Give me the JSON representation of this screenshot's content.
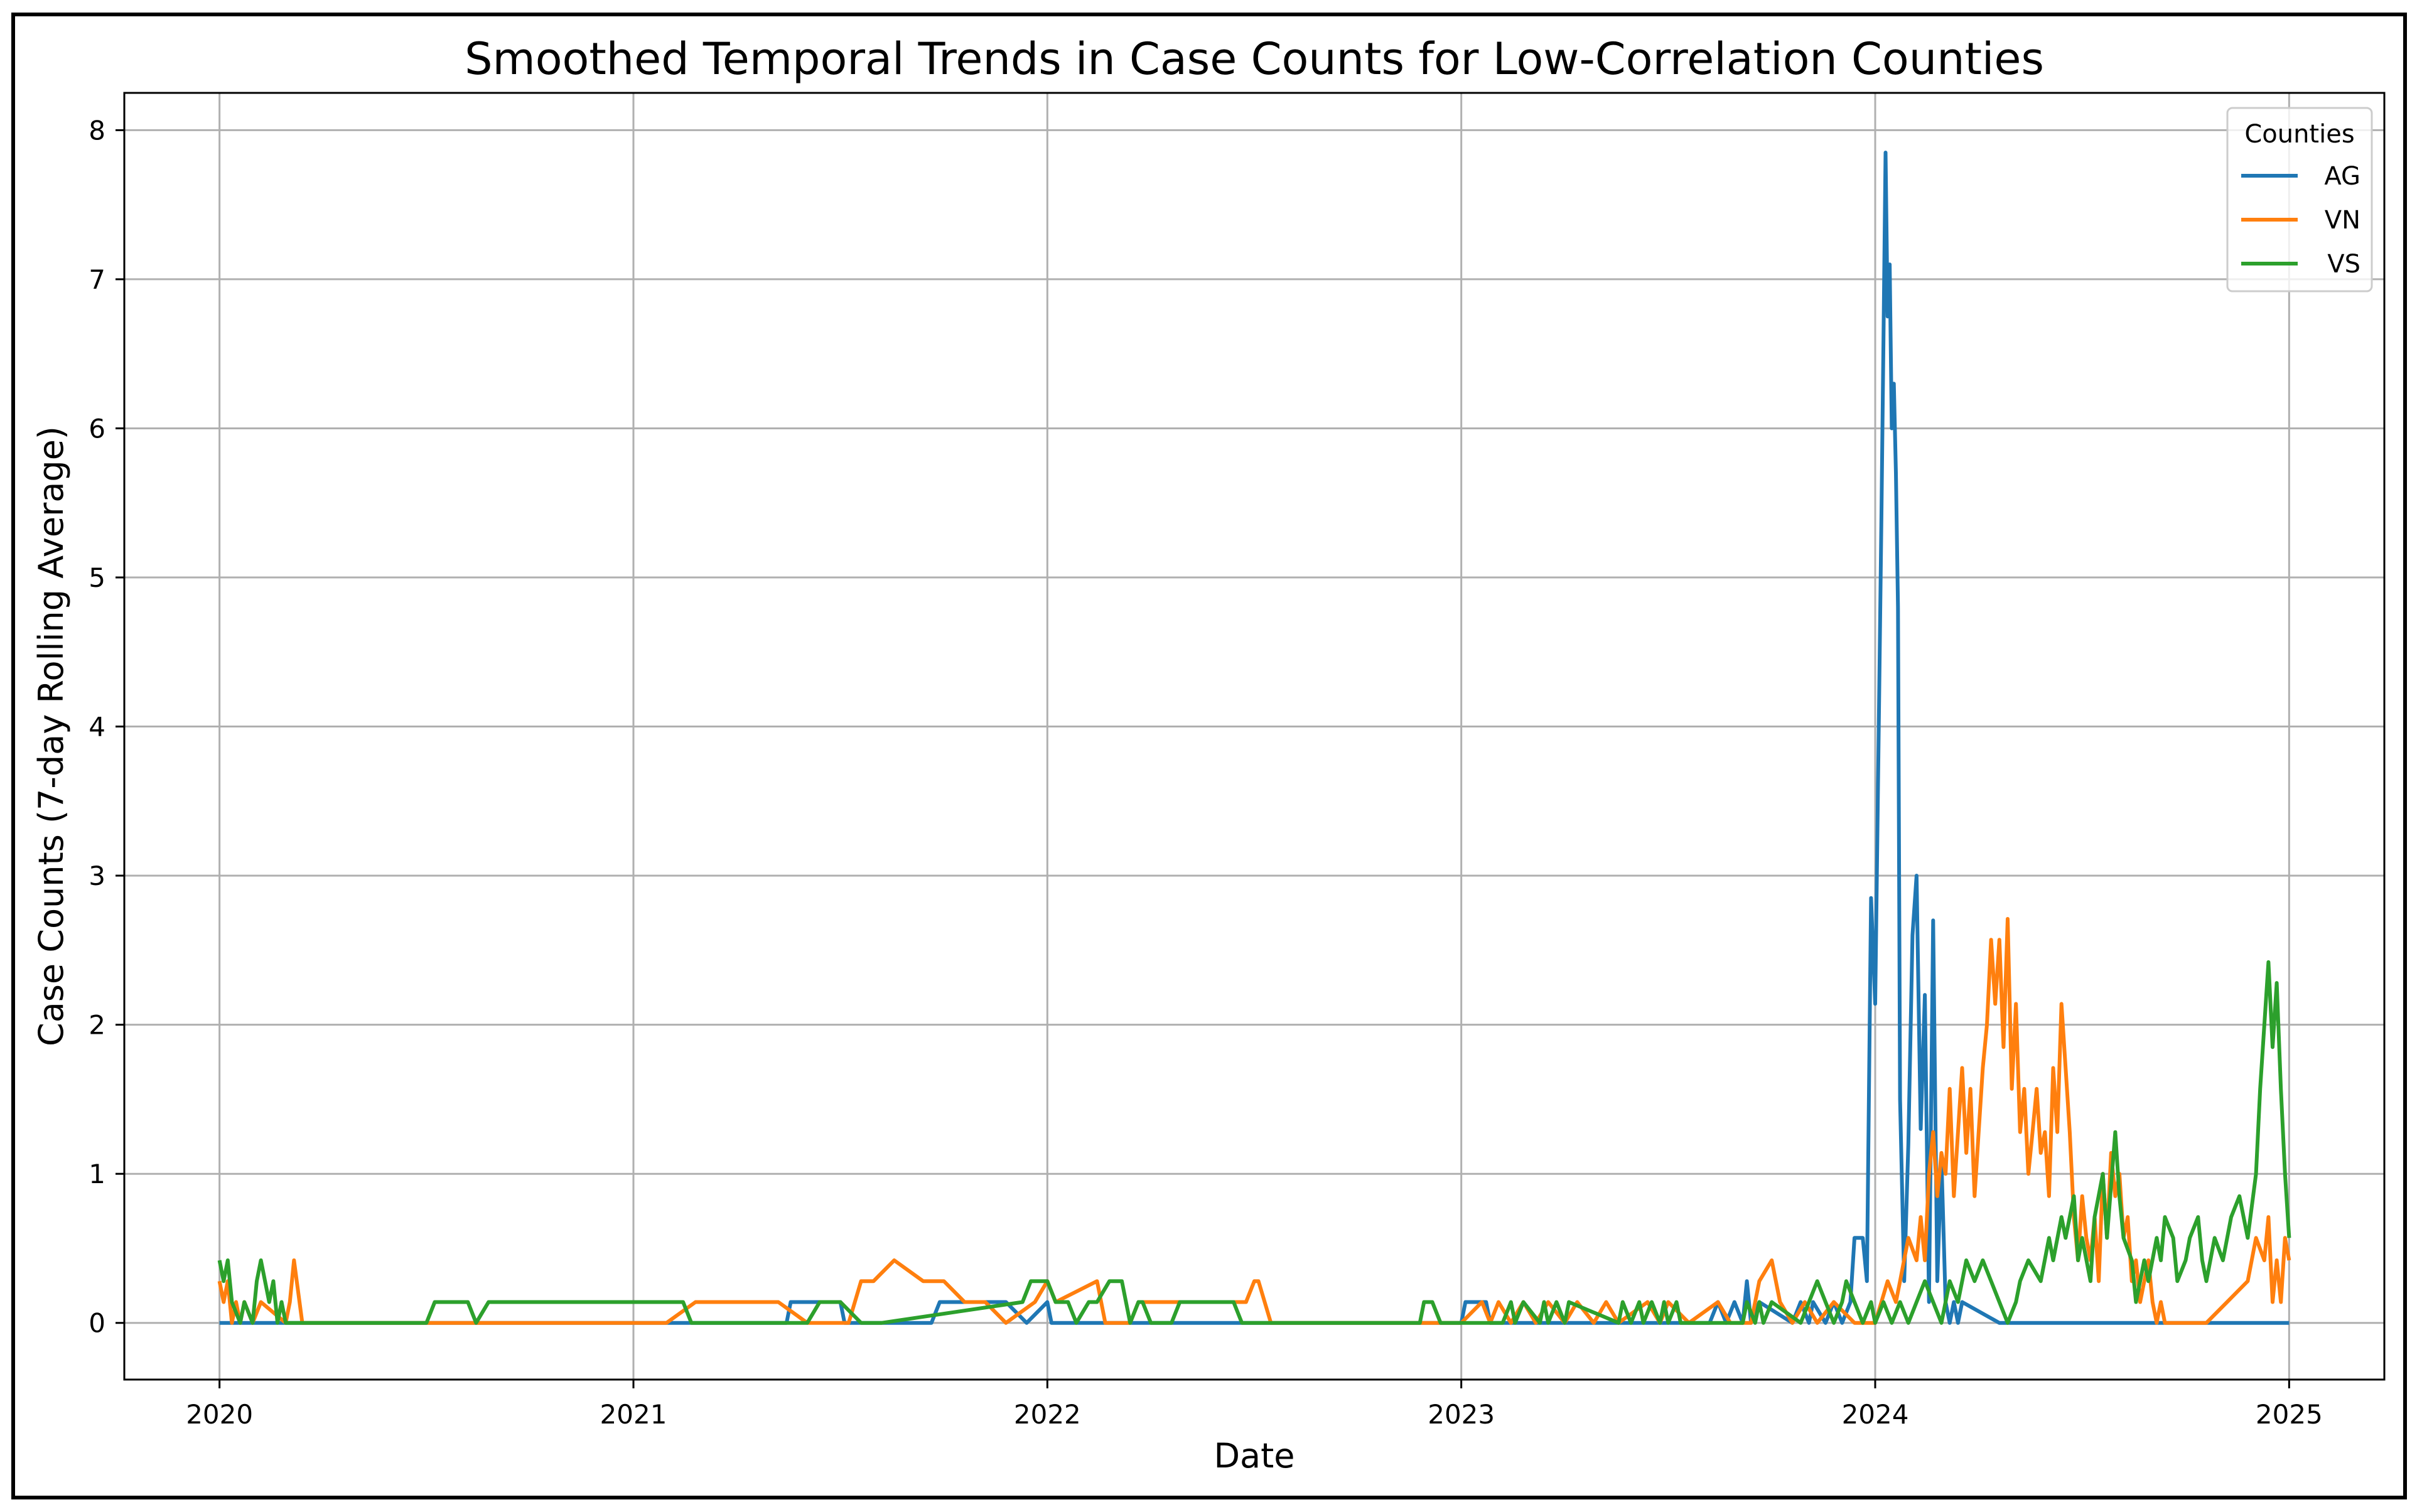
{
  "chart_data": {
    "type": "line",
    "title": "Smoothed Temporal Trends in Case Counts for Low-Correlation Counties",
    "xlabel": "Date",
    "ylabel": "Case Counts (7-day Rolling Average)",
    "xlim": [
      2019.77,
      2025.23
    ],
    "ylim": [
      -0.38,
      8.25
    ],
    "xticks": [
      2020,
      2021,
      2022,
      2023,
      2024,
      2025
    ],
    "xtick_labels": [
      "2020",
      "2021",
      "2022",
      "2023",
      "2024",
      "2025"
    ],
    "yticks": [
      0,
      1,
      2,
      3,
      4,
      5,
      6,
      7,
      8
    ],
    "ytick_labels": [
      "0",
      "1",
      "2",
      "3",
      "4",
      "5",
      "6",
      "7",
      "8"
    ],
    "grid": true,
    "legend": {
      "title": "Counties",
      "position": "top-right"
    },
    "series": [
      {
        "name": "AG",
        "color": "#1f77b4",
        "x": [
          2020.0,
          2021.37,
          2021.38,
          2021.5,
          2021.51,
          2021.72,
          2021.74,
          2021.9,
          2021.95,
          2022.0,
          2022.01,
          2023.0,
          2023.01,
          2023.06,
          2023.07,
          2023.6,
          2023.62,
          2023.64,
          2023.66,
          2023.68,
          2023.69,
          2023.7,
          2023.72,
          2023.8,
          2023.82,
          2023.84,
          2023.85,
          2023.88,
          2023.9,
          2023.92,
          2023.94,
          2023.95,
          2023.97,
          2023.98,
          2023.99,
          2024.0,
          2024.01,
          2024.015,
          2024.02,
          2024.025,
          2024.03,
          2024.035,
          2024.04,
          2024.045,
          2024.05,
          2024.055,
          2024.06,
          2024.07,
          2024.08,
          2024.09,
          2024.1,
          2024.11,
          2024.12,
          2024.13,
          2024.14,
          2024.15,
          2024.16,
          2024.17,
          2024.18,
          2024.19,
          2024.2,
          2024.21,
          2024.3,
          2025.0
        ],
        "y": [
          0,
          0,
          0.14,
          0.14,
          0,
          0,
          0.14,
          0.14,
          0,
          0.14,
          0,
          0,
          0.14,
          0.14,
          0,
          0,
          0.14,
          0,
          0.14,
          0,
          0.28,
          0,
          0.14,
          0,
          0.14,
          0,
          0.14,
          0,
          0.14,
          0,
          0.14,
          0.57,
          0.57,
          0.28,
          2.85,
          2.14,
          4.3,
          5.4,
          6.6,
          7.85,
          6.75,
          7.1,
          6.0,
          6.3,
          5.7,
          4.8,
          1.5,
          0.28,
          1.2,
          2.6,
          3.0,
          1.3,
          2.2,
          0.14,
          2.7,
          0.28,
          1.1,
          0.14,
          0,
          0.14,
          0,
          0.14,
          0,
          0
        ]
      },
      {
        "name": "VN",
        "color": "#ff7f0e",
        "x": [
          2020.0,
          2020.01,
          2020.02,
          2020.03,
          2020.04,
          2020.05,
          2020.06,
          2020.08,
          2020.1,
          2020.16,
          2020.17,
          2020.18,
          2020.2,
          2020.22,
          2021.08,
          2021.15,
          2021.35,
          2021.42,
          2021.52,
          2021.55,
          2021.58,
          2021.63,
          2021.7,
          2021.75,
          2021.8,
          2021.85,
          2021.9,
          2021.97,
          2022.0,
          2022.02,
          2022.12,
          2022.14,
          2022.2,
          2022.22,
          2022.48,
          2022.5,
          2022.51,
          2022.54,
          2022.56,
          2023.0,
          2023.05,
          2023.07,
          2023.09,
          2023.12,
          2023.15,
          2023.18,
          2023.21,
          2023.25,
          2023.28,
          2023.32,
          2023.35,
          2023.38,
          2023.45,
          2023.48,
          2023.5,
          2023.55,
          2023.62,
          2023.65,
          2023.7,
          2023.72,
          2023.75,
          2023.77,
          2023.8,
          2023.83,
          2023.86,
          2023.9,
          2023.95,
          2024.0,
          2024.03,
          2024.05,
          2024.06,
          2024.08,
          2024.1,
          2024.11,
          2024.12,
          2024.13,
          2024.14,
          2024.15,
          2024.16,
          2024.17,
          2024.18,
          2024.19,
          2024.2,
          2024.21,
          2024.22,
          2024.23,
          2024.24,
          2024.25,
          2024.26,
          2024.27,
          2024.28,
          2024.29,
          2024.3,
          2024.31,
          2024.32,
          2024.33,
          2024.34,
          2024.35,
          2024.36,
          2024.37,
          2024.38,
          2024.39,
          2024.4,
          2024.41,
          2024.42,
          2024.43,
          2024.44,
          2024.45,
          2024.46,
          2024.47,
          2024.48,
          2024.49,
          2024.5,
          2024.51,
          2024.52,
          2024.53,
          2024.54,
          2024.55,
          2024.56,
          2024.57,
          2024.58,
          2024.59,
          2024.6,
          2024.61,
          2024.62,
          2024.63,
          2024.64,
          2024.65,
          2024.66,
          2024.67,
          2024.68,
          2024.69,
          2024.7,
          2024.72,
          2024.75,
          2024.8,
          2024.85,
          2024.9,
          2024.92,
          2024.94,
          2024.95,
          2024.96,
          2024.97,
          2024.98,
          2024.99,
          2025.0
        ],
        "y": [
          0.28,
          0.14,
          0.28,
          0,
          0.14,
          0,
          0.14,
          0,
          0.14,
          0,
          0.14,
          0.42,
          0,
          0,
          0,
          0.14,
          0.14,
          0,
          0,
          0.28,
          0.28,
          0.42,
          0.28,
          0.28,
          0.14,
          0.14,
          0,
          0.14,
          0.28,
          0.14,
          0.28,
          0,
          0,
          0.14,
          0.14,
          0.28,
          0.28,
          0,
          0,
          0,
          0.14,
          0,
          0.14,
          0,
          0.14,
          0,
          0.14,
          0,
          0.14,
          0,
          0.14,
          0,
          0.14,
          0,
          0.14,
          0,
          0.14,
          0,
          0,
          0.28,
          0.42,
          0.14,
          0,
          0.14,
          0,
          0.14,
          0,
          0,
          0.28,
          0.14,
          0.28,
          0.57,
          0.42,
          0.71,
          0.42,
          1.0,
          1.28,
          0.85,
          1.14,
          1.0,
          1.57,
          0.85,
          1.28,
          1.71,
          1.14,
          1.57,
          0.85,
          1.28,
          1.71,
          2.0,
          2.57,
          2.14,
          2.57,
          1.85,
          2.71,
          1.57,
          2.14,
          1.28,
          1.57,
          1.0,
          1.28,
          1.57,
          1.14,
          1.28,
          0.85,
          1.71,
          1.28,
          2.14,
          1.71,
          1.28,
          0.71,
          0.42,
          0.85,
          0.57,
          0.42,
          0.71,
          0.28,
          1.0,
          0.57,
          1.14,
          0.85,
          1.0,
          0.57,
          0.71,
          0.28,
          0.42,
          0.14,
          0.28,
          0.42,
          0.14,
          0,
          0.14,
          0,
          0,
          0,
          0,
          0.14,
          0.28,
          0.57,
          0.42,
          0.71,
          0.14,
          0.42,
          0.14,
          0.57,
          0.42
        ]
      },
      {
        "name": "VS",
        "color": "#2ca02c",
        "x": [
          2020.0,
          2020.01,
          2020.02,
          2020.03,
          2020.05,
          2020.06,
          2020.08,
          2020.09,
          2020.1,
          2020.12,
          2020.13,
          2020.14,
          2020.15,
          2020.16,
          2020.5,
          2020.52,
          2020.6,
          2020.62,
          2020.65,
          2021.12,
          2021.14,
          2021.42,
          2021.45,
          2021.5,
          2021.55,
          2021.6,
          2021.94,
          2021.96,
          2022.0,
          2022.02,
          2022.05,
          2022.07,
          2022.1,
          2022.12,
          2022.15,
          2022.18,
          2022.2,
          2022.22,
          2022.23,
          2022.25,
          2022.3,
          2022.32,
          2022.45,
          2022.47,
          2022.5,
          2022.52,
          2022.9,
          2022.91,
          2022.93,
          2022.95,
          2023.1,
          2023.12,
          2023.13,
          2023.15,
          2023.19,
          2023.2,
          2023.21,
          2023.23,
          2023.25,
          2023.26,
          2023.38,
          2023.39,
          2023.41,
          2023.43,
          2023.44,
          2023.46,
          2023.48,
          2023.49,
          2023.5,
          2023.52,
          2023.53,
          2023.68,
          2023.69,
          2023.71,
          2023.72,
          2023.73,
          2023.75,
          2023.82,
          2023.84,
          2023.86,
          2023.88,
          2023.9,
          2023.92,
          2023.93,
          2023.95,
          2023.97,
          2023.99,
          2024.0,
          2024.02,
          2024.04,
          2024.06,
          2024.08,
          2024.1,
          2024.12,
          2024.14,
          2024.16,
          2024.18,
          2024.2,
          2024.22,
          2024.24,
          2024.26,
          2024.28,
          2024.3,
          2024.32,
          2024.34,
          2024.35,
          2024.37,
          2024.4,
          2024.42,
          2024.43,
          2024.45,
          2024.46,
          2024.48,
          2024.49,
          2024.5,
          2024.52,
          2024.53,
          2024.55,
          2024.56,
          2024.58,
          2024.59,
          2024.6,
          2024.62,
          2024.63,
          2024.65,
          2024.66,
          2024.68,
          2024.69,
          2024.7,
          2024.72,
          2024.73,
          2024.75,
          2024.76,
          2024.78,
          2024.79,
          2024.8,
          2024.82,
          2024.84,
          2024.86,
          2024.88,
          2024.9,
          2024.92,
          2024.93,
          2024.95,
          2024.96,
          2024.97,
          2024.98,
          2024.99,
          2025.0
        ],
        "y": [
          0.42,
          0.28,
          0.42,
          0.14,
          0,
          0.14,
          0,
          0.28,
          0.42,
          0.14,
          0.28,
          0,
          0.14,
          0,
          0,
          0.14,
          0.14,
          0,
          0.14,
          0.14,
          0,
          0,
          0.14,
          0.14,
          0,
          0,
          0.14,
          0.28,
          0.28,
          0.14,
          0.14,
          0,
          0.14,
          0.14,
          0.28,
          0.28,
          0,
          0.14,
          0.14,
          0,
          0,
          0.14,
          0.14,
          0,
          0,
          0,
          0,
          0.14,
          0.14,
          0,
          0,
          0.14,
          0,
          0.14,
          0,
          0.14,
          0,
          0.14,
          0,
          0.14,
          0,
          0.14,
          0,
          0.14,
          0,
          0.14,
          0,
          0.14,
          0,
          0.14,
          0,
          0,
          0.14,
          0,
          0.14,
          0,
          0.14,
          0,
          0.14,
          0.28,
          0.14,
          0,
          0.14,
          0.28,
          0.14,
          0,
          0.14,
          0,
          0.14,
          0,
          0.14,
          0,
          0.14,
          0.28,
          0.14,
          0,
          0.28,
          0.14,
          0.42,
          0.28,
          0.42,
          0.28,
          0.14,
          0,
          0.14,
          0.28,
          0.42,
          0.28,
          0.57,
          0.42,
          0.71,
          0.57,
          0.85,
          0.42,
          0.57,
          0.28,
          0.71,
          1.0,
          0.57,
          1.28,
          0.85,
          0.57,
          0.42,
          0.14,
          0.42,
          0.28,
          0.57,
          0.42,
          0.71,
          0.57,
          0.28,
          0.42,
          0.57,
          0.71,
          0.42,
          0.28,
          0.57,
          0.42,
          0.71,
          0.85,
          0.57,
          1.0,
          1.57,
          2.42,
          1.85,
          2.28,
          1.57,
          1.0,
          0.57
        ]
      }
    ]
  }
}
